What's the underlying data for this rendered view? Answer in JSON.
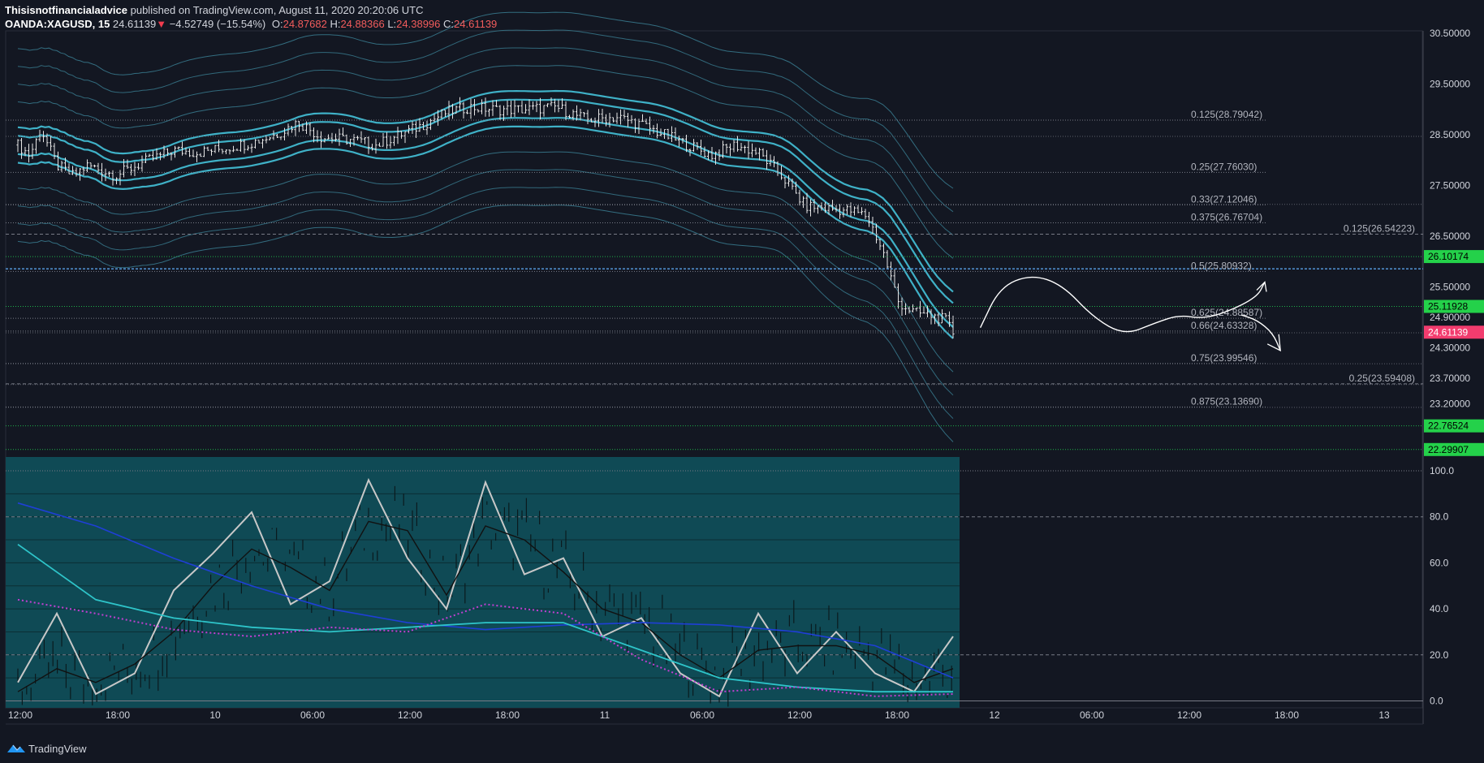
{
  "header": {
    "author": "Thisisnotfinancialadvice",
    "published_text": " published on TradingView.com, August 11, 2020 20:20:06 UTC",
    "symbol": "OANDA:XAGUSD, 15",
    "last": "24.61139",
    "change": "−4.52749 (−15.54%)",
    "ohlc": {
      "o_label": "O:",
      "o": "24.87682",
      "h_label": "H:",
      "h": "24.88366",
      "l_label": "L:",
      "l": "24.38996",
      "c_label": "C:",
      "c": "24.61139"
    }
  },
  "footer": {
    "brand": "TradingView"
  },
  "colors": {
    "background": "#131722",
    "candle": "#e6e6e6",
    "band_main": "#3fb1c7",
    "band_outer": "#3a7d91",
    "green_level": "#1eb34a",
    "blue_level": "#5aa0e6",
    "price_tag": "#f23c6e",
    "green_tag": "#24d14a",
    "osc_fill": "#0f4a55",
    "osc_blue": "#1f3fd6",
    "osc_cyan": "#2ec4c9",
    "osc_magenta": "#c13fd1"
  },
  "chart_data": [
    {
      "type": "candlestick",
      "instrument": "OANDA:XAGUSD",
      "timeframe": "15",
      "ylim": [
        22.2,
        30.55
      ],
      "price_axis_labels": [
        "30.50000",
        "29.50000",
        "28.50000",
        "27.50000",
        "26.50000",
        "25.50000",
        "24.90000",
        "24.30000",
        "23.70000",
        "23.20000"
      ],
      "price_axis_values": [
        30.5,
        29.5,
        28.5,
        27.5,
        26.5,
        25.5,
        24.9,
        24.3,
        23.7,
        23.2
      ],
      "time_axis_labels": [
        "12:00",
        "18:00",
        "10",
        "06:00",
        "12:00",
        "18:00",
        "11",
        "06:00",
        "12:00",
        "18:00",
        "12",
        "06:00",
        "12:00",
        "18:00",
        "13"
      ],
      "close_path": [
        [
          0,
          28.3
        ],
        [
          0.03,
          28.1
        ],
        [
          0.06,
          28.6
        ],
        [
          0.1,
          27.9
        ],
        [
          0.14,
          27.7
        ],
        [
          0.18,
          27.9
        ],
        [
          0.25,
          27.7
        ],
        [
          0.32,
          27.95
        ],
        [
          0.4,
          28.2
        ],
        [
          0.46,
          28.15
        ],
        [
          0.54,
          28.25
        ],
        [
          0.6,
          28.35
        ],
        [
          0.66,
          28.5
        ],
        [
          0.72,
          28.75
        ],
        [
          0.78,
          28.45
        ],
        [
          0.86,
          28.4
        ],
        [
          0.92,
          28.3
        ],
        [
          0.98,
          28.5
        ],
        [
          1.04,
          28.7
        ],
        [
          1.1,
          28.95
        ],
        [
          1.16,
          29.05
        ],
        [
          1.22,
          29.0
        ],
        [
          1.3,
          29.0
        ],
        [
          1.38,
          29.05
        ],
        [
          1.46,
          28.8
        ],
        [
          1.54,
          28.85
        ],
        [
          1.6,
          28.7
        ],
        [
          1.66,
          28.5
        ],
        [
          1.72,
          28.3
        ],
        [
          1.78,
          28.1
        ],
        [
          1.84,
          28.3
        ],
        [
          1.9,
          28.15
        ],
        [
          1.96,
          27.7
        ],
        [
          2.02,
          27.1
        ],
        [
          2.08,
          27.05
        ],
        [
          2.14,
          27.0
        ],
        [
          2.18,
          26.9
        ],
        [
          2.22,
          26.2
        ],
        [
          2.26,
          25.2
        ],
        [
          2.3,
          25.0
        ],
        [
          2.34,
          24.95
        ],
        [
          2.38,
          24.85
        ],
        [
          2.4,
          24.61
        ]
      ],
      "fibonacci_levels_left": [
        {
          "label": "0.125(28.79042)",
          "value": 28.79042
        },
        {
          "label": "0.25(27.76030)",
          "value": 27.7603
        },
        {
          "label": "0.33(27.12046)",
          "value": 27.12046
        },
        {
          "label": "0.375(26.76704)",
          "value": 26.76704
        },
        {
          "label": "0.5(25.80932)",
          "value": 25.80932
        },
        {
          "label": "0.625(24.88587)",
          "value": 24.88587
        },
        {
          "label": "0.66(24.63328)",
          "value": 24.63328
        },
        {
          "label": "0.75(23.99546)",
          "value": 23.99546
        },
        {
          "label": "0.875(23.13690)",
          "value": 23.1369
        }
      ],
      "fibonacci_levels_right": [
        {
          "label": "0.125(26.54223)",
          "value": 26.54223
        },
        {
          "label": "0.25(23.59408)",
          "value": 23.59408
        }
      ],
      "horizontal_levels": [
        {
          "label": "26.10174",
          "value": 26.10174,
          "style": "green"
        },
        {
          "label": "25.11928",
          "value": 25.11928,
          "style": "green"
        },
        {
          "label": "22.76524",
          "value": 22.76524,
          "style": "green"
        },
        {
          "label": "22.29907",
          "value": 22.29907,
          "style": "green"
        },
        {
          "label": "",
          "value": 25.86,
          "style": "blue-dashed"
        }
      ],
      "last_price_tag": {
        "label": "24.61139",
        "value": 24.61139
      },
      "drawing_path": [
        [
          2.47,
          24.7
        ],
        [
          2.52,
          25.5
        ],
        [
          2.6,
          25.75
        ],
        [
          2.68,
          25.55
        ],
        [
          2.76,
          24.9
        ],
        [
          2.84,
          24.55
        ],
        [
          2.92,
          24.8
        ],
        [
          2.98,
          24.95
        ],
        [
          3.04,
          24.88
        ],
        [
          3.1,
          25.0
        ],
        [
          3.18,
          25.3
        ],
        [
          3.2,
          25.6
        ]
      ],
      "drawing_path_2": [
        [
          3.14,
          24.95
        ],
        [
          3.18,
          24.85
        ],
        [
          3.22,
          24.6
        ],
        [
          3.24,
          24.25
        ]
      ]
    },
    {
      "type": "line",
      "name_panel": "oscillator",
      "ylim": [
        -3,
        106
      ],
      "axis_labels": [
        "100.0",
        "80.0",
        "60.0",
        "40.0",
        "20.0",
        "0.0"
      ],
      "axis_values": [
        100,
        80,
        60,
        40,
        20,
        0
      ],
      "series": [
        {
          "values_x": [
            0,
            0.1,
            0.2,
            0.3,
            0.4,
            0.5,
            0.6,
            0.7,
            0.8,
            0.9,
            1.0,
            1.1,
            1.2,
            1.3,
            1.4,
            1.5,
            1.6,
            1.7,
            1.8,
            1.9,
            2.0,
            2.1,
            2.2,
            2.3,
            2.4
          ],
          "values": [
            8,
            38,
            3,
            12,
            48,
            64,
            82,
            42,
            52,
            96,
            62,
            40,
            95,
            55,
            62,
            28,
            36,
            12,
            2,
            38,
            12,
            30,
            12,
            4,
            28
          ]
        },
        {
          "values_x": [
            0,
            0.1,
            0.2,
            0.3,
            0.4,
            0.5,
            0.6,
            0.7,
            0.8,
            0.9,
            1.0,
            1.1,
            1.2,
            1.3,
            1.4,
            1.5,
            1.6,
            1.7,
            1.8,
            1.9,
            2.0,
            2.1,
            2.2,
            2.3,
            2.4
          ],
          "values": [
            4,
            14,
            8,
            16,
            30,
            50,
            66,
            58,
            48,
            78,
            74,
            46,
            76,
            70,
            56,
            40,
            34,
            20,
            10,
            22,
            24,
            24,
            20,
            8,
            14
          ]
        },
        {
          "values_x": [
            0,
            0.2,
            0.4,
            0.6,
            0.8,
            1.0,
            1.2,
            1.4,
            1.6,
            1.8,
            2.0,
            2.2,
            2.4
          ],
          "values": [
            86,
            76,
            62,
            50,
            40,
            34,
            31,
            33,
            34,
            33,
            30,
            24,
            10
          ]
        },
        {
          "values_x": [
            0,
            0.2,
            0.4,
            0.6,
            0.8,
            1.0,
            1.2,
            1.4,
            1.6,
            1.8,
            2.0,
            2.2,
            2.4
          ],
          "values": [
            68,
            44,
            36,
            32,
            30,
            32,
            34,
            34,
            22,
            10,
            6,
            4,
            4
          ]
        },
        {
          "values_x": [
            0,
            0.2,
            0.4,
            0.6,
            0.8,
            1.0,
            1.2,
            1.4,
            1.6,
            1.8,
            2.0,
            2.2,
            2.4
          ],
          "values": [
            44,
            38,
            31,
            28,
            32,
            30,
            42,
            38,
            18,
            4,
            6,
            2,
            3
          ]
        }
      ]
    }
  ]
}
